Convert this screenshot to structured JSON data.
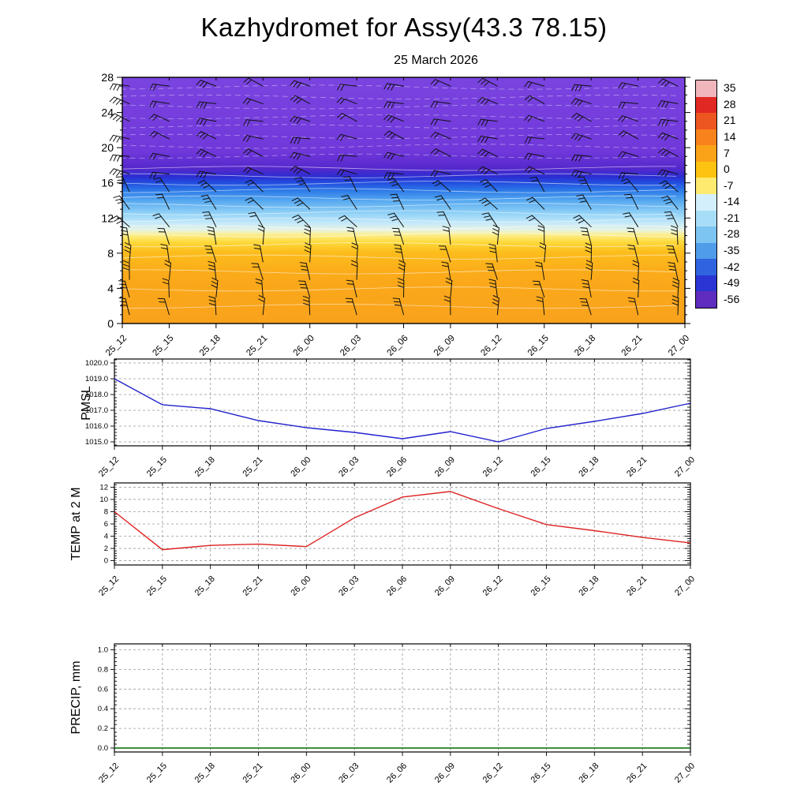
{
  "title": "Kazhydromet for Assy(43.3 78.15)",
  "subtitle": "25 March 2026",
  "time_labels": [
    "25_12",
    "25_15",
    "25_18",
    "25_21",
    "26_00",
    "26_03",
    "26_06",
    "26_09",
    "26_12",
    "26_15",
    "26_18",
    "26_21",
    "27_00"
  ],
  "chart_data": [
    {
      "type": "heatmap",
      "name": "temperature-height-cross-section",
      "x": [
        "25_12",
        "25_15",
        "25_18",
        "25_21",
        "26_00",
        "26_03",
        "26_06",
        "26_09",
        "26_12",
        "26_15",
        "26_18",
        "26_21",
        "27_00"
      ],
      "ylim": [
        0,
        28
      ],
      "y_ticks": [
        0,
        4,
        8,
        12,
        16,
        20,
        24,
        28
      ],
      "y_tick_labels": [
        "0",
        "4",
        "8",
        "12",
        "16",
        "20",
        "24",
        "28"
      ],
      "description": "Time-height section: warm (orange ~+5 to 0 C) below level 10, yellow ~-10 near level 10, blues -15 to -45 between levels 11-16, purple ~-50 to -56 above level 17; wind barbs overlaid; white contour lines",
      "colorbar": {
        "labels": [
          "35",
          "28",
          "21",
          "14",
          "7",
          "0",
          "-7",
          "-14",
          "-21",
          "-28",
          "-35",
          "-42",
          "-49",
          "-56"
        ],
        "colors": [
          "#f0b6bc",
          "#e22822",
          "#ee5621",
          "#f8821c",
          "#fba318",
          "#fdc310",
          "#fdea6e",
          "#d2effb",
          "#a8ddf7",
          "#7cc4f1",
          "#4f9ceb",
          "#2f63e0",
          "#2a35d4",
          "#5e2cbe"
        ]
      },
      "gradient_stops": [
        {
          "pos": 0,
          "color": "#7a44e0"
        },
        {
          "pos": 30,
          "color": "#7038da"
        },
        {
          "pos": 37,
          "color": "#5528cc"
        },
        {
          "pos": 40.5,
          "color": "#2a2ed2"
        },
        {
          "pos": 43,
          "color": "#2350e0"
        },
        {
          "pos": 46,
          "color": "#2d7ae8"
        },
        {
          "pos": 50,
          "color": "#55a8f0"
        },
        {
          "pos": 55,
          "color": "#8fd0f6"
        },
        {
          "pos": 59,
          "color": "#c2e8fa"
        },
        {
          "pos": 62,
          "color": "#e8f4e4"
        },
        {
          "pos": 64,
          "color": "#fcee8c"
        },
        {
          "pos": 67,
          "color": "#fdd93a"
        },
        {
          "pos": 71,
          "color": "#fcbd1c"
        },
        {
          "pos": 80,
          "color": "#fbaa1a"
        },
        {
          "pos": 100,
          "color": "#f9a21c"
        }
      ],
      "contour_fracs": [
        0.04,
        0.08,
        0.12,
        0.16,
        0.2,
        0.24,
        0.28,
        0.32,
        0.37,
        0.4,
        0.43,
        0.46,
        0.49,
        0.52,
        0.55,
        0.58,
        0.61,
        0.64,
        0.68,
        0.73,
        0.79,
        0.86,
        0.93
      ],
      "wind_barbs": {
        "levels": [
          1,
          3,
          5,
          7,
          9,
          11,
          13,
          15,
          17,
          19,
          21,
          23,
          25,
          27
        ],
        "bands": [
          {
            "min_level": 17,
            "staff_angle_deg": 163,
            "note": "upper levels, near-horizontal westerly barbs"
          },
          {
            "min_level": 11,
            "staff_angle_deg": 127,
            "note": "mid levels, slanted barbs"
          },
          {
            "min_level": 0,
            "staff_angle_deg": 96,
            "note": "low levels, near-vertical southerly barbs"
          }
        ]
      }
    },
    {
      "type": "line",
      "name": "pmsl",
      "ylabel": "PMSL",
      "color": "#2222cc",
      "x": [
        "25_12",
        "25_15",
        "25_18",
        "25_21",
        "26_00",
        "26_03",
        "26_06",
        "26_09",
        "26_12",
        "26_15",
        "26_18",
        "26_21",
        "27_00"
      ],
      "values": [
        1019.0,
        1017.35,
        1017.1,
        1016.35,
        1015.9,
        1015.6,
        1015.2,
        1015.65,
        1015.0,
        1015.85,
        1016.3,
        1016.8,
        1017.45
      ],
      "y_ticks": [
        1015.0,
        1016.0,
        1017.0,
        1018.0,
        1019.0,
        1020.0
      ],
      "y_tick_labels": [
        "1015.0",
        "1016.0",
        "1017.0",
        "1018.0",
        "1019.0",
        "1020.0"
      ],
      "ylim": [
        1014.75,
        1020.25
      ],
      "grid": "dashed"
    },
    {
      "type": "line",
      "name": "temp-2m",
      "ylabel": "TEMP at 2 M",
      "color": "#dd2222",
      "x": [
        "25_12",
        "25_15",
        "25_18",
        "25_21",
        "26_00",
        "26_03",
        "26_06",
        "26_09",
        "26_12",
        "26_15",
        "26_18",
        "26_21",
        "27_00"
      ],
      "values": [
        8.0,
        1.8,
        2.5,
        2.7,
        2.3,
        7.0,
        10.4,
        11.3,
        8.5,
        5.9,
        4.9,
        3.8,
        2.9
      ],
      "y_ticks": [
        0,
        2,
        4,
        6,
        8,
        10,
        12
      ],
      "y_tick_labels": [
        "0",
        "2",
        "4",
        "6",
        "8",
        "10",
        "12"
      ],
      "ylim": [
        -0.7,
        12.7
      ],
      "grid": "dashed"
    },
    {
      "type": "line",
      "name": "precip",
      "ylabel": "PRECIP, mm",
      "color": "#006600",
      "x": [
        "25_12",
        "25_15",
        "25_18",
        "25_21",
        "26_00",
        "26_03",
        "26_06",
        "26_09",
        "26_12",
        "26_15",
        "26_18",
        "26_21",
        "27_00"
      ],
      "values": [
        0,
        0,
        0,
        0,
        0,
        0,
        0,
        0,
        0,
        0,
        0,
        0,
        0
      ],
      "y_ticks": [
        0.0,
        0.2,
        0.4,
        0.6,
        0.8,
        1.0
      ],
      "y_tick_labels": [
        "0.0",
        "0.2",
        "0.4",
        "0.6",
        "0.8",
        "1.0"
      ],
      "ylim": [
        -0.04,
        1.06
      ],
      "grid": "dashed"
    }
  ]
}
